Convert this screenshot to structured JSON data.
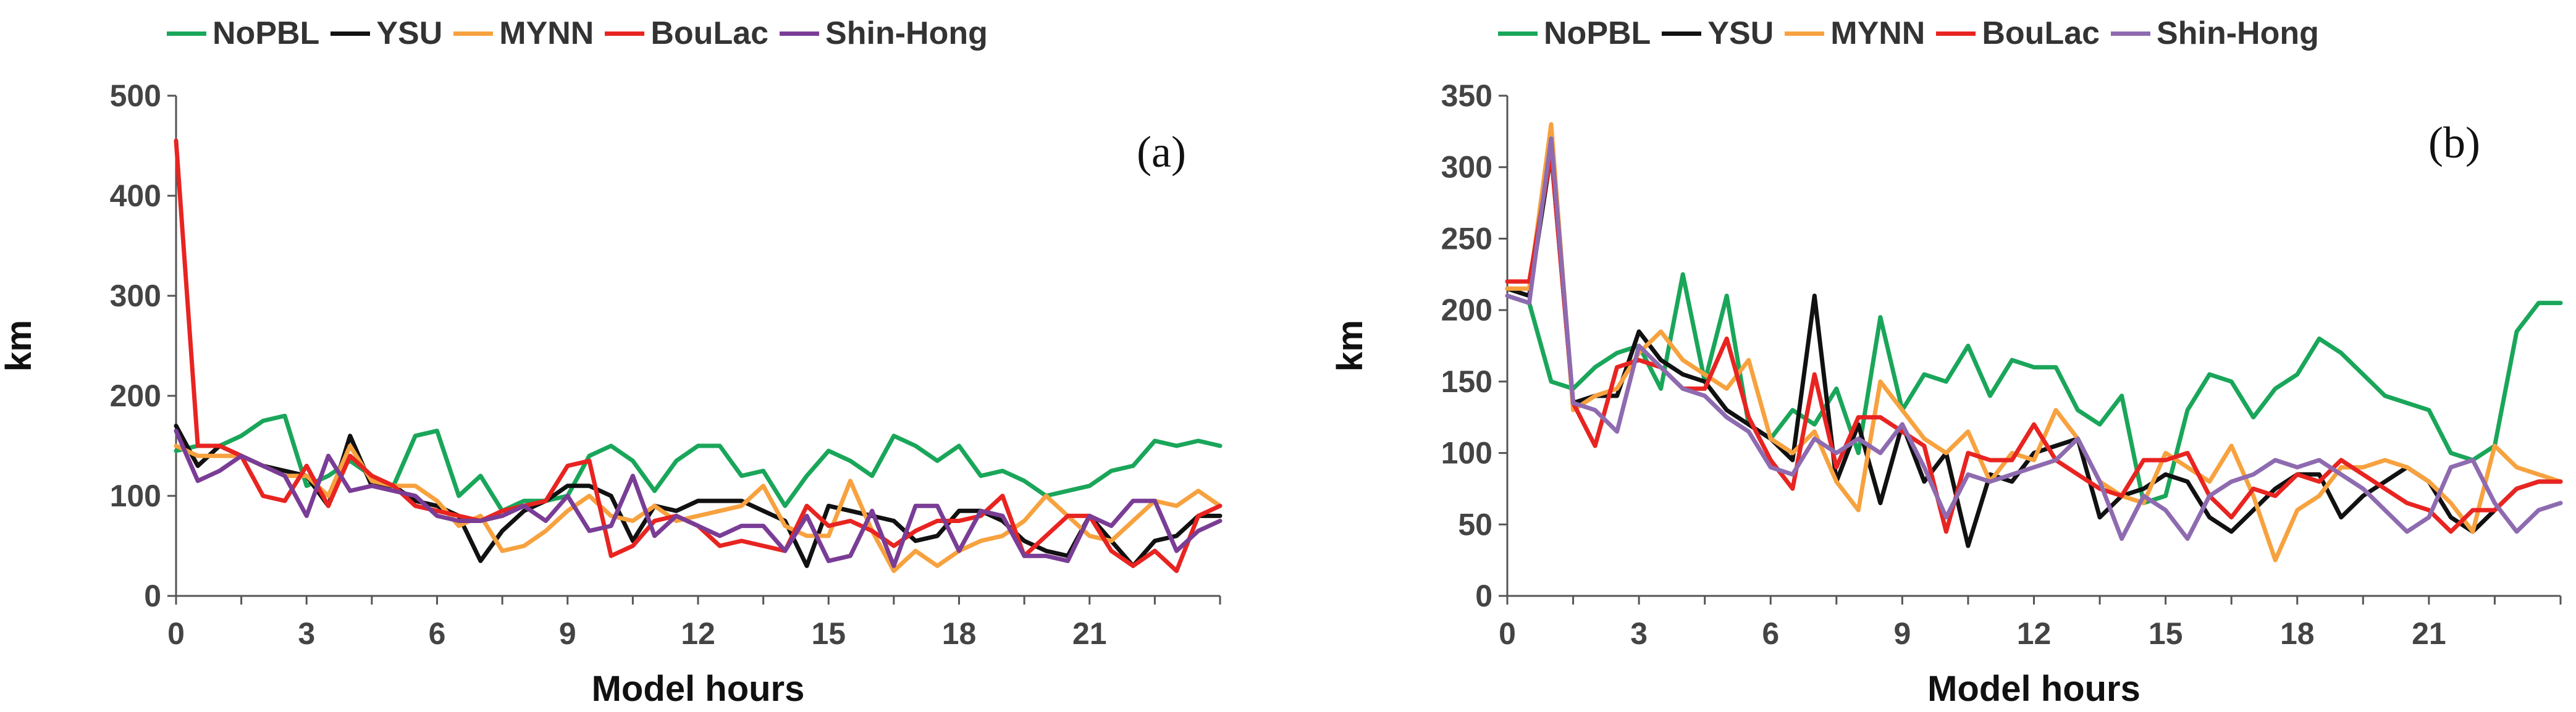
{
  "chart_data": [
    {
      "type": "line",
      "panel_label": "(a)",
      "xlabel": "Model hours",
      "ylabel": "km",
      "xlim": [
        0,
        24
      ],
      "ylim": [
        0,
        500
      ],
      "xticks": [
        0,
        3,
        6,
        9,
        12,
        15,
        18,
        21
      ],
      "yticks": [
        0,
        100,
        200,
        300,
        400,
        500
      ],
      "x": [
        0,
        0.5,
        1,
        1.5,
        2,
        2.5,
        3,
        3.5,
        4,
        4.5,
        5,
        5.5,
        6,
        6.5,
        7,
        7.5,
        8,
        8.5,
        9,
        9.5,
        10,
        10.5,
        11,
        11.5,
        12,
        12.5,
        13,
        13.5,
        14,
        14.5,
        15,
        15.5,
        16,
        16.5,
        17,
        17.5,
        18,
        18.5,
        19,
        19.5,
        20,
        20.5,
        21,
        21.5,
        22,
        22.5,
        23,
        23.5,
        24
      ],
      "series": [
        {
          "name": "NoPBL",
          "color": "#1aa65a",
          "values": [
            145,
            150,
            150,
            160,
            175,
            180,
            110,
            120,
            135,
            120,
            110,
            160,
            165,
            100,
            120,
            85,
            95,
            95,
            100,
            140,
            150,
            135,
            105,
            135,
            150,
            150,
            120,
            125,
            90,
            120,
            145,
            135,
            120,
            160,
            150,
            135,
            150,
            120,
            125,
            115,
            100,
            105,
            110,
            125,
            130,
            155,
            150,
            155,
            150
          ]
        },
        {
          "name": "YSU",
          "color": "#111111",
          "values": [
            170,
            130,
            150,
            140,
            130,
            125,
            120,
            90,
            160,
            110,
            110,
            95,
            90,
            80,
            35,
            65,
            85,
            95,
            110,
            110,
            100,
            55,
            90,
            85,
            95,
            95,
            95,
            85,
            75,
            30,
            90,
            85,
            80,
            75,
            55,
            60,
            85,
            85,
            75,
            55,
            45,
            40,
            80,
            55,
            30,
            55,
            60,
            80,
            80
          ]
        },
        {
          "name": "MYNN",
          "color": "#f7a23f",
          "values": [
            150,
            140,
            140,
            140,
            130,
            120,
            120,
            100,
            150,
            115,
            110,
            110,
            95,
            70,
            80,
            45,
            50,
            65,
            85,
            100,
            80,
            75,
            90,
            75,
            80,
            85,
            90,
            110,
            70,
            60,
            60,
            115,
            65,
            25,
            45,
            30,
            45,
            55,
            60,
            75,
            100,
            80,
            60,
            55,
            75,
            95,
            90,
            105,
            90
          ]
        },
        {
          "name": "BouLac",
          "color": "#e82421",
          "values": [
            455,
            150,
            150,
            140,
            100,
            95,
            130,
            90,
            140,
            120,
            110,
            90,
            85,
            80,
            75,
            85,
            90,
            95,
            130,
            135,
            40,
            50,
            75,
            80,
            70,
            50,
            55,
            50,
            45,
            90,
            70,
            75,
            65,
            50,
            65,
            75,
            75,
            80,
            100,
            40,
            60,
            80,
            80,
            45,
            30,
            45,
            25,
            80,
            90
          ]
        },
        {
          "name": "Shin-Hong",
          "color": "#7a3d96",
          "values": [
            165,
            115,
            125,
            140,
            130,
            120,
            80,
            140,
            105,
            110,
            105,
            100,
            80,
            75,
            75,
            80,
            90,
            75,
            100,
            65,
            70,
            120,
            60,
            80,
            70,
            60,
            70,
            70,
            45,
            80,
            35,
            40,
            85,
            30,
            90,
            90,
            45,
            85,
            80,
            40,
            40,
            35,
            80,
            70,
            95,
            95,
            45,
            65,
            75
          ]
        }
      ]
    },
    {
      "type": "line",
      "panel_label": "(b)",
      "xlabel": "Model hours",
      "ylabel": "km",
      "xlim": [
        0,
        24
      ],
      "ylim": [
        0,
        350
      ],
      "xticks": [
        0,
        3,
        6,
        9,
        12,
        15,
        18,
        21
      ],
      "yticks": [
        0,
        50,
        100,
        150,
        200,
        250,
        300,
        350
      ],
      "x": [
        0,
        0.5,
        1,
        1.5,
        2,
        2.5,
        3,
        3.5,
        4,
        4.5,
        5,
        5.5,
        6,
        6.5,
        7,
        7.5,
        8,
        8.5,
        9,
        9.5,
        10,
        10.5,
        11,
        11.5,
        12,
        12.5,
        13,
        13.5,
        14,
        14.5,
        15,
        15.5,
        16,
        16.5,
        17,
        17.5,
        18,
        18.5,
        19,
        19.5,
        20,
        20.5,
        21,
        21.5,
        22,
        22.5,
        23,
        23.5,
        24
      ],
      "series": [
        {
          "name": "NoPBL",
          "color": "#1aa65a",
          "values": [
            210,
            205,
            150,
            145,
            160,
            170,
            175,
            145,
            225,
            150,
            210,
            120,
            110,
            130,
            120,
            145,
            100,
            195,
            130,
            155,
            150,
            175,
            140,
            165,
            160,
            160,
            130,
            120,
            140,
            65,
            70,
            130,
            155,
            150,
            125,
            145,
            155,
            180,
            170,
            155,
            140,
            135,
            130,
            100,
            95,
            105,
            185,
            205,
            205
          ]
        },
        {
          "name": "YSU",
          "color": "#111111",
          "values": [
            215,
            210,
            310,
            135,
            140,
            140,
            185,
            165,
            155,
            150,
            130,
            120,
            110,
            95,
            210,
            80,
            120,
            65,
            120,
            80,
            100,
            35,
            85,
            80,
            100,
            105,
            110,
            55,
            70,
            75,
            85,
            80,
            55,
            45,
            60,
            75,
            85,
            85,
            55,
            70,
            80,
            90,
            80,
            55,
            45,
            60,
            75,
            80,
            80
          ]
        },
        {
          "name": "MYNN",
          "color": "#f7a23f",
          "values": [
            215,
            215,
            330,
            130,
            140,
            145,
            170,
            185,
            165,
            155,
            145,
            165,
            110,
            100,
            115,
            80,
            60,
            150,
            130,
            110,
            100,
            115,
            80,
            100,
            95,
            130,
            110,
            80,
            70,
            65,
            100,
            90,
            80,
            105,
            70,
            25,
            60,
            70,
            90,
            90,
            95,
            90,
            80,
            65,
            45,
            105,
            90,
            85,
            80
          ]
        },
        {
          "name": "BouLac",
          "color": "#e82421",
          "values": [
            220,
            220,
            310,
            135,
            105,
            160,
            165,
            160,
            145,
            145,
            180,
            125,
            95,
            75,
            155,
            90,
            125,
            125,
            115,
            105,
            45,
            100,
            95,
            95,
            120,
            95,
            85,
            75,
            70,
            95,
            95,
            100,
            70,
            55,
            75,
            70,
            85,
            80,
            95,
            85,
            75,
            65,
            60,
            45,
            60,
            60,
            75,
            80,
            80
          ]
        },
        {
          "name": "Shin-Hong",
          "color": "#8e6bb0",
          "values": [
            210,
            205,
            320,
            135,
            130,
            115,
            175,
            160,
            145,
            140,
            125,
            115,
            90,
            85,
            110,
            100,
            110,
            100,
            120,
            90,
            55,
            85,
            80,
            85,
            90,
            95,
            110,
            80,
            40,
            70,
            60,
            40,
            70,
            80,
            85,
            95,
            90,
            95,
            85,
            75,
            60,
            45,
            55,
            90,
            95,
            65,
            45,
            60,
            65
          ]
        }
      ]
    }
  ]
}
